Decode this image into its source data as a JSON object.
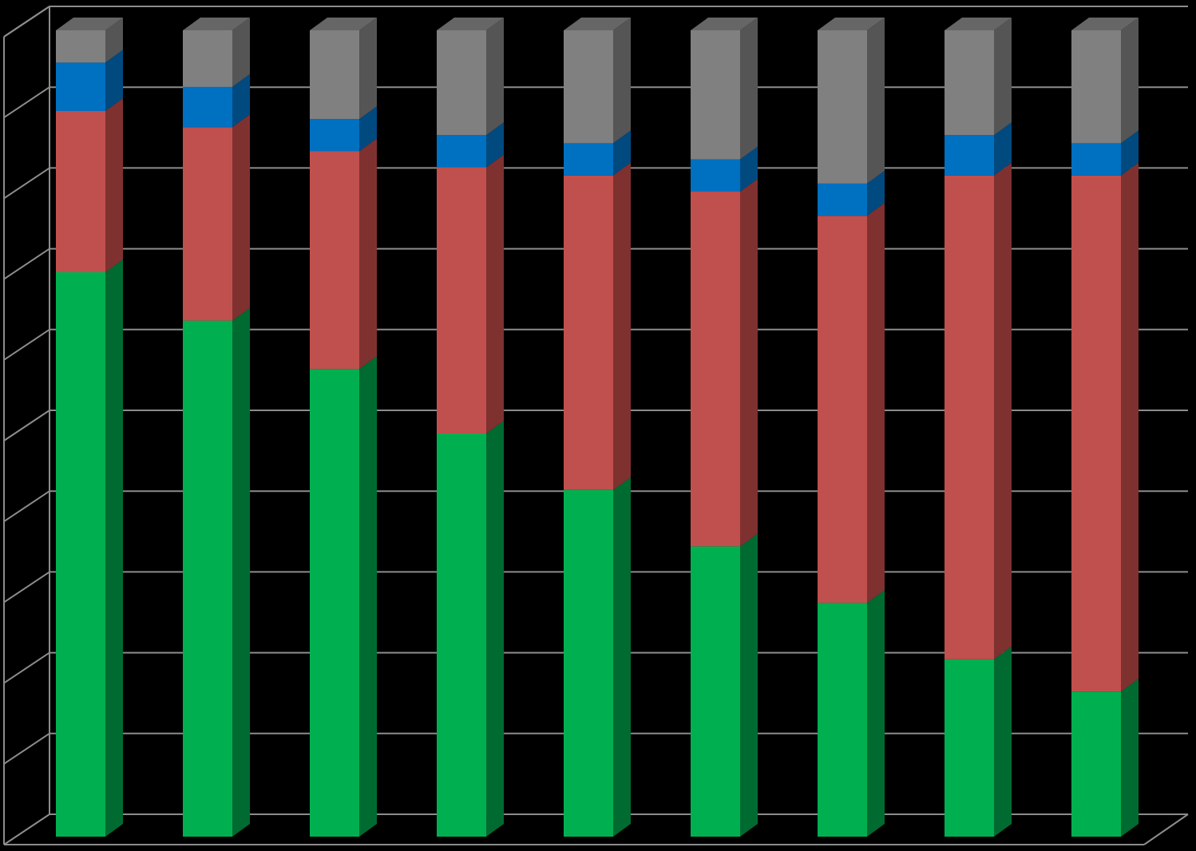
{
  "chart_data": {
    "type": "bar",
    "stacked": true,
    "percent_stacked": true,
    "three_d": true,
    "categories": [
      "",
      "",
      "",
      "",
      "",
      "",
      "",
      "",
      ""
    ],
    "ylim": [
      0,
      100
    ],
    "grid": true,
    "legend": "none",
    "series": [
      {
        "values": [
          70,
          64,
          58,
          50,
          43,
          36,
          29,
          22,
          18
        ],
        "color": "#00b050",
        "side_color": "#006b31"
      },
      {
        "values": [
          20,
          24,
          27,
          33,
          39,
          44,
          48,
          60,
          64
        ],
        "color": "#c0504d",
        "side_color": "#7f3130"
      },
      {
        "values": [
          6,
          5,
          4,
          4,
          4,
          4,
          4,
          5,
          4
        ],
        "color": "#0070c0",
        "side_color": "#004a80"
      },
      {
        "values": [
          4,
          7,
          11,
          13,
          14,
          16,
          19,
          13,
          14
        ],
        "color": "#808080",
        "side_color": "#555555"
      }
    ],
    "colors": {
      "background": "#000000",
      "gridline": "#8c8c8c",
      "top_face": "#666666"
    }
  }
}
